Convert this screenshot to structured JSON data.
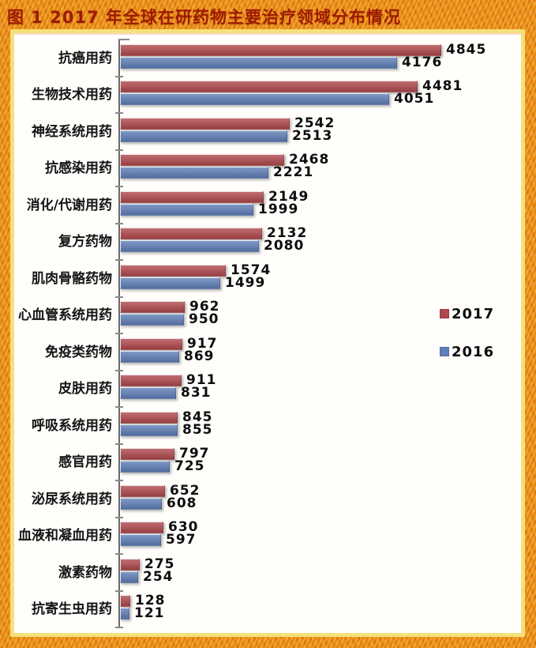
{
  "header": {
    "title": "图 1  2017 年全球在研药物主要治疗领域分布情况"
  },
  "chart_data": {
    "type": "bar",
    "orientation": "horizontal",
    "figure_label": "图 1",
    "title": "2017 年全球在研药物主要治疗领域分布情况",
    "categories": [
      "抗癌用药",
      "生物技术用药",
      "神经系统用药",
      "抗感染用药",
      "消化/代谢用药",
      "复方药物",
      "肌肉骨骼药物",
      "心血管系统用药",
      "免疫类药物",
      "皮肤用药",
      "呼吸系统用药",
      "感官用药",
      "泌尿系统用药",
      "血液和凝血用药",
      "激素药物",
      "抗寄生虫用药"
    ],
    "series": [
      {
        "name": "2017",
        "color": "#b0494e",
        "values": [
          4845,
          4481,
          2542,
          2468,
          2149,
          2132,
          1574,
          962,
          917,
          911,
          845,
          797,
          652,
          630,
          275,
          128
        ]
      },
      {
        "name": "2016",
        "color": "#5f7fb8",
        "values": [
          4176,
          4051,
          2513,
          2221,
          1999,
          2080,
          1499,
          950,
          869,
          831,
          855,
          725,
          608,
          597,
          254,
          121
        ]
      }
    ],
    "value_labels": true,
    "grid": false,
    "legend_position": "middle-right",
    "xlim": [
      0,
      5000
    ]
  },
  "colors": {
    "frame_orange": "#e78a10",
    "inner_border_yellow": "#f6e07a",
    "panel_bg": "#fffefb",
    "title_red": "#9e1b02",
    "bar_2017": "#b0494e",
    "bar_2016": "#5f7fb8",
    "axis_gray": "#6b6b6b",
    "value_text": "#0d0d0d"
  }
}
